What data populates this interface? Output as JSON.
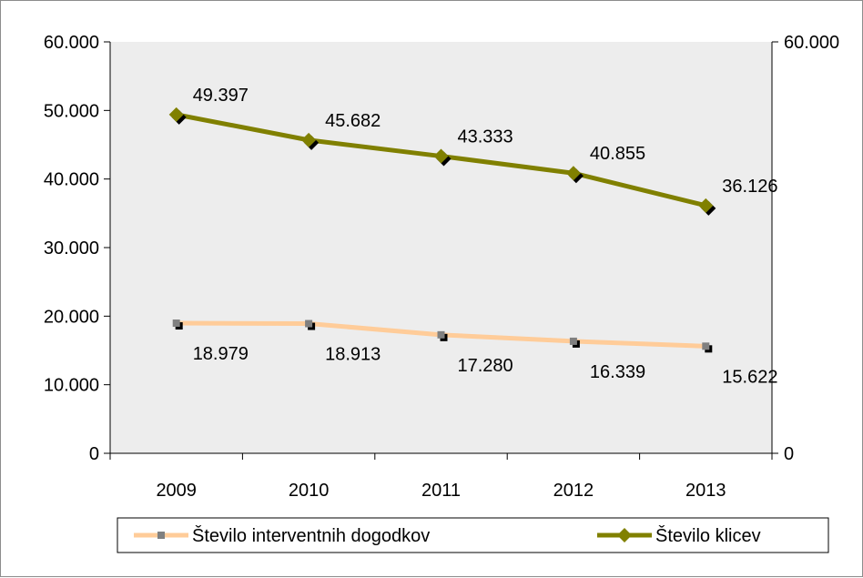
{
  "chart_data": {
    "type": "line",
    "title": "",
    "xlabel": "",
    "ylabel": "",
    "categories": [
      "2009",
      "2010",
      "2011",
      "2012",
      "2013"
    ],
    "ylim": [
      0,
      60000
    ],
    "y_ticks": [
      "0",
      "10.000",
      "20.000",
      "30.000",
      "40.000",
      "50.000",
      "60.000"
    ],
    "y2_ticks": [
      "0",
      "60.000"
    ],
    "grid": false,
    "plot_background": "#ededed",
    "legend_position": "bottom",
    "series": [
      {
        "name": "Število interventnih dogodkov",
        "values": [
          18979,
          18913,
          17280,
          16339,
          15622
        ],
        "labels": [
          "18.979",
          "18.913",
          "17.280",
          "16.339",
          "15.622"
        ],
        "color": "#ffcc99",
        "marker": "square",
        "marker_color": "#808080",
        "label_position": "below"
      },
      {
        "name": "Število klicev",
        "values": [
          49397,
          45682,
          43333,
          40855,
          36126
        ],
        "labels": [
          "49.397",
          "45.682",
          "43.333",
          "40.855",
          "36.126"
        ],
        "color": "#808000",
        "marker": "diamond",
        "marker_color": "#808000",
        "label_position": "above"
      }
    ]
  }
}
